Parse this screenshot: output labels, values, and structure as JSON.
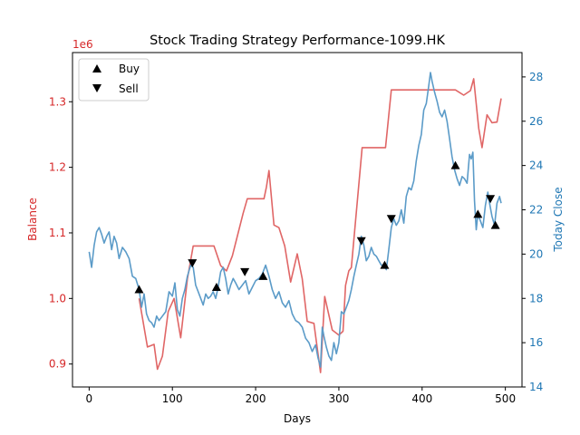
{
  "chart_data": {
    "type": "line",
    "title": "Stock Trading Strategy Performance-1099.HK",
    "xlabel": "Days",
    "xlim": [
      -20,
      520
    ],
    "xticks": [
      0,
      100,
      200,
      300,
      400,
      500
    ],
    "grid": false,
    "legend_position": "top-left",
    "left_axis": {
      "label": "Balance",
      "color": "#d62728",
      "multiplier_label": "1e6",
      "scale": 1000000,
      "ylim": [
        0.865,
        1.375
      ],
      "ticks": [
        0.9,
        1.0,
        1.1,
        1.2,
        1.3
      ]
    },
    "right_axis": {
      "label": "Today Close",
      "color": "#1f77b4",
      "ylim": [
        14,
        29.1
      ],
      "ticks": [
        14,
        16,
        18,
        20,
        22,
        24,
        26,
        28
      ]
    },
    "balance_series": {
      "name": "Balance",
      "color": "#e06666",
      "points": [
        [
          60,
          1.0
        ],
        [
          70,
          0.926
        ],
        [
          78,
          0.93
        ],
        [
          82,
          0.892
        ],
        [
          88,
          0.912
        ],
        [
          95,
          0.98
        ],
        [
          102,
          1.0
        ],
        [
          110,
          0.94
        ],
        [
          118,
          1.03
        ],
        [
          125,
          1.08
        ],
        [
          150,
          1.08
        ],
        [
          158,
          1.05
        ],
        [
          165,
          1.042
        ],
        [
          172,
          1.065
        ],
        [
          185,
          1.13
        ],
        [
          190,
          1.152
        ],
        [
          210,
          1.152
        ],
        [
          213,
          1.17
        ],
        [
          216,
          1.195
        ],
        [
          222,
          1.112
        ],
        [
          228,
          1.108
        ],
        [
          235,
          1.08
        ],
        [
          242,
          1.025
        ],
        [
          250,
          1.068
        ],
        [
          256,
          1.03
        ],
        [
          262,
          0.965
        ],
        [
          270,
          0.962
        ],
        [
          278,
          0.887
        ],
        [
          283,
          1.003
        ],
        [
          292,
          0.952
        ],
        [
          300,
          0.944
        ],
        [
          305,
          0.95
        ],
        [
          308,
          1.02
        ],
        [
          312,
          1.042
        ],
        [
          315,
          1.047
        ],
        [
          328,
          1.23
        ],
        [
          356,
          1.23
        ],
        [
          363,
          1.318
        ],
        [
          440,
          1.318
        ],
        [
          450,
          1.31
        ],
        [
          458,
          1.317
        ],
        [
          462,
          1.335
        ],
        [
          468,
          1.26
        ],
        [
          472,
          1.23
        ],
        [
          478,
          1.28
        ],
        [
          484,
          1.268
        ],
        [
          490,
          1.269
        ],
        [
          495,
          1.305
        ]
      ]
    },
    "close_series": {
      "name": "Today Close",
      "color": "#5b9bc8",
      "points": [
        [
          0,
          20.1
        ],
        [
          3,
          19.4
        ],
        [
          6,
          20.4
        ],
        [
          9,
          21.0
        ],
        [
          12,
          21.2
        ],
        [
          15,
          20.9
        ],
        [
          18,
          20.5
        ],
        [
          21,
          20.8
        ],
        [
          24,
          21.0
        ],
        [
          27,
          20.2
        ],
        [
          30,
          20.8
        ],
        [
          33,
          20.5
        ],
        [
          36,
          19.8
        ],
        [
          40,
          20.3
        ],
        [
          44,
          20.1
        ],
        [
          48,
          19.8
        ],
        [
          52,
          19.0
        ],
        [
          56,
          18.9
        ],
        [
          60,
          18.4
        ],
        [
          63,
          17.6
        ],
        [
          66,
          18.2
        ],
        [
          69,
          17.3
        ],
        [
          72,
          17.0
        ],
        [
          75,
          16.9
        ],
        [
          78,
          16.7
        ],
        [
          81,
          17.2
        ],
        [
          84,
          17.0
        ],
        [
          88,
          17.2
        ],
        [
          92,
          17.4
        ],
        [
          96,
          18.3
        ],
        [
          100,
          18.1
        ],
        [
          103,
          18.7
        ],
        [
          106,
          17.5
        ],
        [
          109,
          17.2
        ],
        [
          112,
          18.0
        ],
        [
          115,
          18.4
        ],
        [
          118,
          19.0
        ],
        [
          122,
          19.5
        ],
        [
          125,
          19.4
        ],
        [
          128,
          18.6
        ],
        [
          131,
          18.3
        ],
        [
          134,
          18.0
        ],
        [
          137,
          17.7
        ],
        [
          140,
          18.2
        ],
        [
          143,
          18.0
        ],
        [
          146,
          18.1
        ],
        [
          149,
          18.3
        ],
        [
          152,
          18.0
        ],
        [
          155,
          18.5
        ],
        [
          158,
          19.2
        ],
        [
          161,
          19.4
        ],
        [
          164,
          18.9
        ],
        [
          167,
          18.2
        ],
        [
          170,
          18.6
        ],
        [
          173,
          18.9
        ],
        [
          176,
          18.7
        ],
        [
          180,
          18.4
        ],
        [
          184,
          18.6
        ],
        [
          188,
          18.8
        ],
        [
          192,
          18.2
        ],
        [
          196,
          18.5
        ],
        [
          200,
          18.8
        ],
        [
          204,
          18.9
        ],
        [
          208,
          19.1
        ],
        [
          212,
          19.5
        ],
        [
          216,
          19.0
        ],
        [
          220,
          18.4
        ],
        [
          224,
          18.0
        ],
        [
          228,
          18.3
        ],
        [
          232,
          17.8
        ],
        [
          236,
          17.6
        ],
        [
          240,
          17.9
        ],
        [
          244,
          17.3
        ],
        [
          248,
          17.0
        ],
        [
          252,
          16.9
        ],
        [
          256,
          16.7
        ],
        [
          260,
          16.2
        ],
        [
          264,
          16.0
        ],
        [
          268,
          15.6
        ],
        [
          272,
          15.9
        ],
        [
          275,
          15.3
        ],
        [
          278,
          14.9
        ],
        [
          280,
          16.7
        ],
        [
          282,
          16.3
        ],
        [
          285,
          15.8
        ],
        [
          288,
          15.4
        ],
        [
          291,
          15.2
        ],
        [
          294,
          16.0
        ],
        [
          297,
          15.5
        ],
        [
          300,
          16.0
        ],
        [
          303,
          17.4
        ],
        [
          306,
          17.3
        ],
        [
          309,
          17.6
        ],
        [
          312,
          17.9
        ],
        [
          315,
          18.4
        ],
        [
          318,
          19.0
        ],
        [
          321,
          19.5
        ],
        [
          324,
          20.0
        ],
        [
          327,
          20.8
        ],
        [
          330,
          20.4
        ],
        [
          333,
          19.7
        ],
        [
          336,
          19.9
        ],
        [
          339,
          20.3
        ],
        [
          342,
          20.0
        ],
        [
          345,
          19.9
        ],
        [
          348,
          19.7
        ],
        [
          351,
          19.5
        ],
        [
          354,
          19.5
        ],
        [
          357,
          19.3
        ],
        [
          360,
          20.2
        ],
        [
          363,
          21.2
        ],
        [
          366,
          21.6
        ],
        [
          369,
          21.3
        ],
        [
          372,
          21.5
        ],
        [
          375,
          22.0
        ],
        [
          378,
          21.4
        ],
        [
          381,
          22.6
        ],
        [
          384,
          23.0
        ],
        [
          387,
          22.9
        ],
        [
          390,
          23.3
        ],
        [
          393,
          24.2
        ],
        [
          396,
          24.9
        ],
        [
          399,
          25.4
        ],
        [
          402,
          26.5
        ],
        [
          405,
          26.8
        ],
        [
          408,
          27.6
        ],
        [
          410,
          28.2
        ],
        [
          412,
          27.8
        ],
        [
          415,
          27.3
        ],
        [
          418,
          26.9
        ],
        [
          421,
          26.4
        ],
        [
          424,
          26.2
        ],
        [
          427,
          26.5
        ],
        [
          430,
          26.0
        ],
        [
          433,
          25.2
        ],
        [
          436,
          24.4
        ],
        [
          439,
          23.8
        ],
        [
          442,
          23.4
        ],
        [
          445,
          23.1
        ],
        [
          448,
          23.5
        ],
        [
          451,
          23.4
        ],
        [
          454,
          23.2
        ],
        [
          457,
          24.5
        ],
        [
          459,
          24.3
        ],
        [
          461,
          24.6
        ],
        [
          463,
          22.4
        ],
        [
          465,
          21.1
        ],
        [
          467,
          21.8
        ],
        [
          470,
          21.5
        ],
        [
          473,
          21.2
        ],
        [
          476,
          22.2
        ],
        [
          479,
          22.8
        ],
        [
          481,
          22.3
        ],
        [
          484,
          21.7
        ],
        [
          487,
          21.3
        ],
        [
          490,
          22.3
        ],
        [
          493,
          22.6
        ],
        [
          495,
          22.3
        ]
      ]
    },
    "buy_signals": [
      [
        60,
        18.4
      ],
      [
        153,
        18.5
      ],
      [
        209,
        19.0
      ],
      [
        355,
        19.5
      ],
      [
        440,
        24.0
      ],
      [
        467,
        21.8
      ],
      [
        488,
        21.3
      ]
    ],
    "sell_signals": [
      [
        124,
        19.6
      ],
      [
        187,
        19.2
      ],
      [
        327,
        20.6
      ],
      [
        363,
        21.6
      ],
      [
        482,
        22.5
      ]
    ],
    "legend": [
      {
        "label": "Buy",
        "marker": "triangle-up"
      },
      {
        "label": "Sell",
        "marker": "triangle-down"
      }
    ]
  }
}
